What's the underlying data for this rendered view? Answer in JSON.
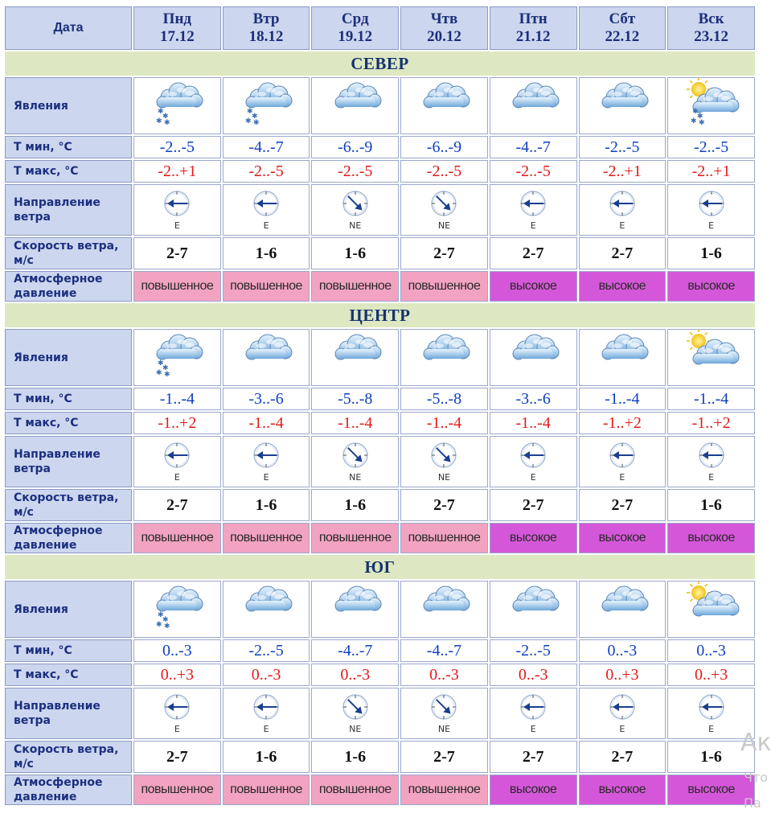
{
  "header": {
    "date_label": "Дата",
    "days": [
      {
        "dow": "Пнд",
        "date": "17.12"
      },
      {
        "dow": "Втр",
        "date": "18.12"
      },
      {
        "dow": "Срд",
        "date": "19.12"
      },
      {
        "dow": "Чтв",
        "date": "20.12"
      },
      {
        "dow": "Птн",
        "date": "21.12"
      },
      {
        "dow": "Сбт",
        "date": "22.12"
      },
      {
        "dow": "Вск",
        "date": "23.12"
      }
    ]
  },
  "row_labels": {
    "phenomena": "Явления",
    "tmin": "Т мин, °С",
    "tmax": "Т макс, °С",
    "wind_dir": "Направление ветра",
    "wind_speed": "Скорость ветра, м/с",
    "pressure": "Атмосферное давление"
  },
  "regions": [
    {
      "name": "СЕВЕР",
      "phenomena": [
        "cloud-snow-icon",
        "cloud-snow-icon",
        "cloud-icon",
        "cloud-icon",
        "cloud-icon",
        "cloud-icon",
        "sun-cloud-snow-icon"
      ],
      "tmin": [
        "-2..-5",
        "-4..-7",
        "-6..-9",
        "-6..-9",
        "-4..-7",
        "-2..-5",
        "-2..-5"
      ],
      "tmax": [
        "-2..+1",
        "-2..-5",
        "-2..-5",
        "-2..-5",
        "-2..-5",
        "-2..+1",
        "-2..+1"
      ],
      "wind_dir": [
        "E",
        "E",
        "NE",
        "NE",
        "E",
        "E",
        "E"
      ],
      "wind_speed": [
        "2-7",
        "1-6",
        "1-6",
        "2-7",
        "2-7",
        "2-7",
        "1-6"
      ],
      "pressure": [
        "повышенное",
        "повышенное",
        "повышенное",
        "повышенное",
        "высокое",
        "высокое",
        "высокое"
      ]
    },
    {
      "name": "ЦЕНТР",
      "phenomena": [
        "cloud-snow-icon",
        "cloud-icon",
        "cloud-icon",
        "cloud-icon",
        "cloud-icon",
        "cloud-icon",
        "sun-cloud-icon"
      ],
      "tmin": [
        "-1..-4",
        "-3..-6",
        "-5..-8",
        "-5..-8",
        "-3..-6",
        "-1..-4",
        "-1..-4"
      ],
      "tmax": [
        "-1..+2",
        "-1..-4",
        "-1..-4",
        "-1..-4",
        "-1..-4",
        "-1..+2",
        "-1..+2"
      ],
      "wind_dir": [
        "E",
        "E",
        "NE",
        "NE",
        "E",
        "E",
        "E"
      ],
      "wind_speed": [
        "2-7",
        "1-6",
        "1-6",
        "2-7",
        "2-7",
        "2-7",
        "1-6"
      ],
      "pressure": [
        "повышенное",
        "повышенное",
        "повышенное",
        "повышенное",
        "высокое",
        "высокое",
        "высокое"
      ]
    },
    {
      "name": "ЮГ",
      "phenomena": [
        "cloud-snow-icon",
        "cloud-icon",
        "cloud-icon",
        "cloud-icon",
        "cloud-icon",
        "cloud-icon",
        "sun-cloud-icon"
      ],
      "tmin": [
        "0..-3",
        "-2..-5",
        "-4..-7",
        "-4..-7",
        "-2..-5",
        "0..-3",
        "0..-3"
      ],
      "tmax": [
        "0..+3",
        "0..-3",
        "0..-3",
        "0..-3",
        "0..-3",
        "0..+3",
        "0..+3"
      ],
      "wind_dir": [
        "E",
        "E",
        "NE",
        "NE",
        "E",
        "E",
        "E"
      ],
      "wind_speed": [
        "2-7",
        "1-6",
        "1-6",
        "2-7",
        "2-7",
        "2-7",
        "1-6"
      ],
      "pressure": [
        "повышенное",
        "повышенное",
        "повышенное",
        "повышенное",
        "высокое",
        "высокое",
        "высокое"
      ]
    }
  ],
  "pressure_colors": {
    "повышенное": "#f2a3c1",
    "высокое": "#d557d9"
  },
  "watermark": {
    "line1": "Ак",
    "line2": "Что",
    "line3": "Па"
  }
}
